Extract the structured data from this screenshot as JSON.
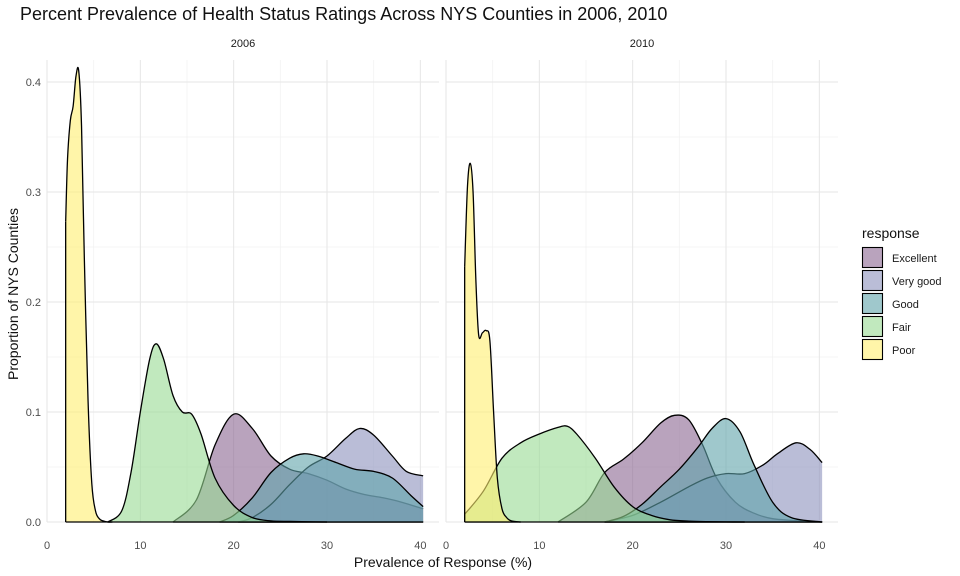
{
  "chart_data": {
    "type": "area",
    "subtype": "density",
    "title": "Percent Prevalence of Health Status Ratings Across NYS Counties in 2006, 2010",
    "xlabel": "Prevalence of Response (%)",
    "ylabel": "Proportion of NYS Counties",
    "xlim": [
      0,
      42
    ],
    "ylim": [
      0,
      0.42
    ],
    "x_ticks": [
      0,
      10,
      20,
      30,
      40
    ],
    "y_ticks": [
      0.0,
      0.1,
      0.2,
      0.3,
      0.4
    ],
    "x_tick_labels": [
      "0",
      "10",
      "20",
      "30",
      "40"
    ],
    "y_tick_labels": [
      "0.0",
      "0.1",
      "0.2",
      "0.3",
      "0.4"
    ],
    "grid": true,
    "legend": {
      "title": "response",
      "position": "right"
    },
    "series_order": [
      "Excellent",
      "Very good",
      "Good",
      "Fair",
      "Poor"
    ],
    "colors": {
      "Excellent": "#8a6591",
      "Very good": "#8c91bd",
      "Good": "#5fa3aa",
      "Fair": "#98db93",
      "Poor": "#ffee70"
    },
    "fill_opacity": 0.6,
    "panels": [
      {
        "label": "2006",
        "series": [
          {
            "name": "Excellent",
            "x": [
              13.5,
              16,
              18,
              20,
              22,
              24,
              26,
              28,
              30,
              32,
              34,
              36,
              38,
              40.3
            ],
            "y": [
              0.0,
              0.02,
              0.07,
              0.098,
              0.085,
              0.06,
              0.048,
              0.044,
              0.038,
              0.03,
              0.025,
              0.022,
              0.018,
              0.012
            ]
          },
          {
            "name": "Very good",
            "x": [
              20.5,
              22,
              24,
              26,
              28,
              30,
              32,
              33.5,
              35,
              37,
              38.5,
              40.3
            ],
            "y": [
              0.0,
              0.004,
              0.016,
              0.034,
              0.05,
              0.06,
              0.076,
              0.085,
              0.079,
              0.06,
              0.046,
              0.042
            ]
          },
          {
            "name": "Good",
            "x": [
              18.5,
              20,
              22,
              24,
              26,
              27.5,
              29,
              31,
              33,
              35,
              37,
              39,
              40.3
            ],
            "y": [
              0.0,
              0.006,
              0.022,
              0.045,
              0.058,
              0.062,
              0.06,
              0.054,
              0.048,
              0.046,
              0.04,
              0.024,
              0.014
            ]
          },
          {
            "name": "Fair",
            "x": [
              6.5,
              8,
              9,
              10,
              11,
              11.7,
              12.5,
              13.5,
              14.5,
              15.5,
              16.5,
              18,
              20,
              22,
              24,
              26,
              28,
              30
            ],
            "y": [
              0.0,
              0.01,
              0.045,
              0.1,
              0.148,
              0.162,
              0.148,
              0.115,
              0.1,
              0.098,
              0.08,
              0.04,
              0.015,
              0.004,
              0.001,
              0.0005,
              0.0002,
              0.0
            ]
          },
          {
            "name": "Poor",
            "x": [
              2.0,
              2.2,
              2.5,
              2.8,
              3.1,
              3.4,
              3.7,
              4.0,
              4.4,
              4.8,
              5.2,
              5.6,
              6.0,
              6.5,
              7.0
            ],
            "y": [
              0.273,
              0.33,
              0.365,
              0.378,
              0.405,
              0.41,
              0.36,
              0.24,
              0.11,
              0.035,
              0.01,
              0.003,
              0.001,
              0.0,
              0.0
            ]
          }
        ]
      },
      {
        "label": "2010",
        "series": [
          {
            "name": "Excellent",
            "x": [
              12,
              15,
              17,
              19,
              21,
              23,
              24.5,
              26,
              27.5,
              29,
              31,
              33,
              35,
              38,
              40.3
            ],
            "y": [
              0.0,
              0.018,
              0.045,
              0.057,
              0.072,
              0.09,
              0.097,
              0.093,
              0.07,
              0.04,
              0.018,
              0.008,
              0.003,
              0.001,
              0.0
            ]
          },
          {
            "name": "Very good",
            "x": [
              17,
              20,
              23,
              26,
              28,
              30,
              32,
              34,
              35.5,
              37.5,
              39,
              40.3
            ],
            "y": [
              0.0,
              0.006,
              0.018,
              0.032,
              0.04,
              0.044,
              0.044,
              0.052,
              0.062,
              0.072,
              0.066,
              0.054
            ]
          },
          {
            "name": "Good",
            "x": [
              17,
              19,
              21,
              23,
              25,
              27,
              28.5,
              30,
              31.5,
              33,
              35,
              37,
              40.3
            ],
            "y": [
              0.0,
              0.005,
              0.016,
              0.032,
              0.048,
              0.068,
              0.085,
              0.094,
              0.082,
              0.052,
              0.018,
              0.004,
              0.0
            ]
          },
          {
            "name": "Fair",
            "x": [
              2,
              4,
              6,
              8,
              10,
              12,
              13,
              14,
              16,
              18,
              20,
              22,
              24,
              26,
              28,
              30,
              32
            ],
            "y": [
              0.007,
              0.028,
              0.058,
              0.072,
              0.08,
              0.086,
              0.087,
              0.08,
              0.058,
              0.032,
              0.014,
              0.006,
              0.002,
              0.0008,
              0.0003,
              0.0001,
              0.0
            ]
          },
          {
            "name": "Poor",
            "x": [
              2.0,
              2.3,
              2.6,
              2.9,
              3.2,
              3.5,
              3.9,
              4.3,
              4.7,
              5.1,
              5.5,
              6.0,
              6.5,
              7.0,
              8.0
            ],
            "y": [
              0.232,
              0.305,
              0.326,
              0.3,
              0.22,
              0.17,
              0.172,
              0.174,
              0.165,
              0.1,
              0.04,
              0.012,
              0.004,
              0.001,
              0.0
            ]
          }
        ]
      }
    ]
  }
}
